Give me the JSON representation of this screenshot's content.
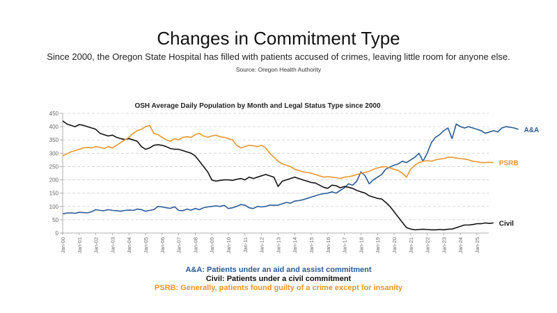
{
  "header": {
    "title": "Changes in Commitment Type",
    "subtitle": "Since 2000, the Oregon State Hospital has filled with patients accused of crimes, leaving little room for anyone else.",
    "source": "Source: Oregon Health Authority"
  },
  "legend_notes": {
    "aa": "A&A: Patients under an aid and assist commitment",
    "civil": "Civil: Patients under a civil commitment",
    "psrb": "PSRB: Generally, patients found guilty of a crime except for insanity"
  },
  "chart_data": {
    "type": "line",
    "title": "OSH Average Daily Population by Month and Legal Status Type since 2000",
    "xlabel": "",
    "ylabel": "",
    "ylim": [
      0,
      450
    ],
    "yticks": [
      0,
      50,
      100,
      150,
      200,
      250,
      300,
      350,
      400,
      450
    ],
    "xticks": [
      "Jan-00",
      "Jan-01",
      "Jan-02",
      "Jan-03",
      "Jan-04",
      "Jan-05",
      "Jan-06",
      "Jan-07",
      "Jan-08",
      "Jan-09",
      "Jan-10",
      "Jan-11",
      "Jan-12",
      "Jan-13",
      "Jan-14",
      "Jan-15",
      "Jan-16",
      "Jan-17",
      "Jan-18",
      "Jan-19",
      "Jan-20",
      "Jan-21",
      "Jan-22",
      "Jan-23",
      "Jan-24",
      "Jan-25"
    ],
    "x_start_year": 2000,
    "x_step_years": 0.25,
    "grid": true,
    "legend_position": "right-end-labels",
    "series": [
      {
        "name": "A&A",
        "color": "#2a5a96",
        "values": [
          72,
          75,
          76,
          74,
          78,
          77,
          76,
          80,
          88,
          85,
          84,
          88,
          85,
          84,
          82,
          85,
          86,
          85,
          90,
          88,
          82,
          85,
          88,
          100,
          98,
          95,
          93,
          99,
          85,
          84,
          90,
          86,
          92,
          88,
          95,
          98,
          100,
          102,
          100,
          104,
          92,
          95,
          100,
          107,
          105,
          95,
          92,
          100,
          98,
          100,
          105,
          104,
          105,
          110,
          115,
          112,
          120,
          122,
          125,
          130,
          135,
          140,
          145,
          148,
          150,
          155,
          150,
          160,
          170,
          185,
          180,
          195,
          230,
          215,
          185,
          200,
          210,
          220,
          240,
          248,
          255,
          260,
          270,
          265,
          275,
          285,
          300,
          270,
          300,
          340,
          360,
          370,
          385,
          395,
          355,
          410,
          400,
          395,
          400,
          395,
          390,
          385,
          375,
          380,
          385,
          380,
          395,
          400,
          398,
          395,
          390
        ]
      },
      {
        "name": "Civil",
        "color": "#111111",
        "values": [
          422,
          410,
          405,
          400,
          408,
          405,
          400,
          395,
          390,
          375,
          370,
          365,
          368,
          360,
          355,
          352,
          355,
          350,
          345,
          325,
          315,
          320,
          330,
          332,
          330,
          325,
          318,
          315,
          315,
          310,
          305,
          300,
          290,
          270,
          250,
          230,
          200,
          195,
          198,
          200,
          200,
          198,
          202,
          205,
          200,
          210,
          205,
          210,
          215,
          220,
          215,
          210,
          175,
          195,
          200,
          205,
          210,
          205,
          200,
          195,
          190,
          188,
          180,
          172,
          168,
          180,
          178,
          170,
          175,
          172,
          168,
          160,
          155,
          150,
          140,
          135,
          130,
          128,
          115,
          100,
          80,
          60,
          40,
          20,
          15,
          12,
          13,
          14,
          13,
          12,
          12,
          13,
          12,
          14,
          15,
          20,
          25,
          30,
          30,
          32,
          35,
          35,
          38,
          36,
          38
        ]
      },
      {
        "name": "PSRB",
        "color": "#e8952e",
        "values": [
          290,
          298,
          305,
          310,
          315,
          320,
          322,
          320,
          325,
          322,
          318,
          325,
          320,
          330,
          340,
          350,
          360,
          375,
          385,
          390,
          400,
          405,
          375,
          370,
          360,
          350,
          345,
          355,
          350,
          360,
          362,
          360,
          370,
          375,
          365,
          360,
          365,
          368,
          362,
          360,
          355,
          350,
          330,
          320,
          325,
          330,
          328,
          325,
          330,
          320,
          300,
          285,
          270,
          260,
          255,
          250,
          240,
          235,
          230,
          228,
          225,
          220,
          215,
          210,
          212,
          210,
          208,
          205,
          210,
          212,
          215,
          220,
          225,
          228,
          232,
          240,
          245,
          248,
          250,
          245,
          240,
          235,
          225,
          210,
          240,
          255,
          265,
          270,
          272,
          270,
          275,
          278,
          280,
          285,
          285,
          282,
          280,
          278,
          275,
          270,
          268,
          265,
          265,
          266,
          265
        ]
      }
    ]
  }
}
